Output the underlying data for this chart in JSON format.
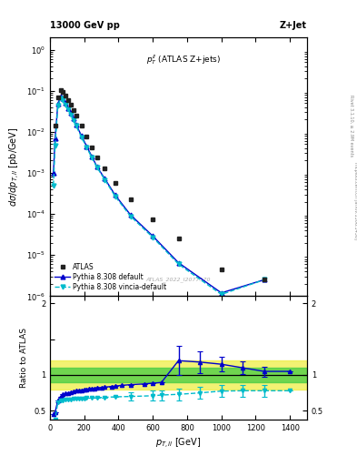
{
  "title_left": "13000 GeV pp",
  "title_right": "Z+Jet",
  "annotation": "$p_T^{ll}$ (ATLAS Z+jets)",
  "watermark": "ATLAS_2022_I2077570",
  "xlabel": "$p_{T,ll}$ [GeV]",
  "ylabel": "$d\\sigma/dp_{T,ll}$ [pb/GeV]",
  "ylabel_ratio": "Ratio to ATLAS",
  "atlas_x": [
    30,
    46,
    61.5,
    76.5,
    92,
    107,
    122,
    137,
    152,
    184,
    214.5,
    244.5,
    275,
    320,
    380,
    470,
    600,
    750,
    1000,
    1250
  ],
  "atlas_y": [
    0.014,
    0.07,
    0.102,
    0.095,
    0.078,
    0.06,
    0.045,
    0.034,
    0.025,
    0.014,
    0.0075,
    0.0042,
    0.0024,
    0.0013,
    0.00058,
    0.00023,
    7.5e-05,
    2.5e-05,
    4.5e-06,
    2.5e-06
  ],
  "pythia_def_x": [
    20,
    30,
    46,
    61.5,
    76.5,
    92,
    107,
    122,
    137,
    152,
    184,
    214.5,
    244.5,
    275,
    320,
    380,
    470,
    600,
    750,
    1000,
    1250
  ],
  "pythia_def_y": [
    0.001,
    0.007,
    0.048,
    0.072,
    0.065,
    0.05,
    0.038,
    0.0285,
    0.021,
    0.015,
    0.008,
    0.0044,
    0.0025,
    0.0014,
    0.00072,
    0.00029,
    9.5e-05,
    2.9e-05,
    6.5e-06,
    1.2e-06,
    2.5e-06
  ],
  "pythia_vincia_x": [
    20,
    30,
    46,
    61.5,
    76.5,
    92,
    107,
    122,
    137,
    152,
    184,
    214.5,
    244.5,
    275,
    320,
    380,
    470,
    600,
    750,
    1000,
    1250
  ],
  "pythia_vincia_y": [
    0.0005,
    0.0045,
    0.043,
    0.065,
    0.059,
    0.0455,
    0.035,
    0.0265,
    0.0195,
    0.014,
    0.0074,
    0.0041,
    0.00235,
    0.00135,
    0.00068,
    0.00027,
    8.8e-05,
    2.7e-05,
    6e-06,
    1.1e-06,
    2.5e-06
  ],
  "ratio_def_x": [
    20,
    30,
    46,
    61.5,
    76.5,
    92,
    107,
    122,
    137,
    152,
    167,
    184,
    199,
    214.5,
    229,
    244.5,
    260,
    275,
    300,
    320,
    360,
    380,
    420,
    470,
    550,
    600,
    650,
    750,
    875,
    1000,
    1125,
    1250,
    1400
  ],
  "ratio_def_y": [
    0.45,
    0.48,
    0.65,
    0.7,
    0.73,
    0.74,
    0.75,
    0.76,
    0.77,
    0.78,
    0.785,
    0.79,
    0.795,
    0.8,
    0.805,
    0.81,
    0.815,
    0.82,
    0.825,
    0.83,
    0.84,
    0.845,
    0.855,
    0.865,
    0.875,
    0.885,
    0.895,
    1.2,
    1.18,
    1.15,
    1.1,
    1.05,
    1.05
  ],
  "ratio_def_yerr": [
    0.0,
    0.0,
    0.0,
    0.0,
    0.0,
    0.0,
    0.0,
    0.0,
    0.0,
    0.0,
    0.0,
    0.0,
    0.0,
    0.0,
    0.0,
    0.0,
    0.0,
    0.0,
    0.0,
    0.0,
    0.0,
    0.0,
    0.0,
    0.0,
    0.0,
    0.0,
    0.0,
    0.2,
    0.15,
    0.1,
    0.09,
    0.07,
    0.0
  ],
  "ratio_vincia_x": [
    20,
    30,
    46,
    61.5,
    76.5,
    92,
    107,
    122,
    137,
    152,
    167,
    184,
    199,
    214.5,
    244.5,
    275,
    320,
    380,
    470,
    600,
    650,
    750,
    875,
    1000,
    1125,
    1250,
    1400
  ],
  "ratio_vincia_y": [
    0.35,
    0.38,
    0.62,
    0.645,
    0.65,
    0.655,
    0.66,
    0.663,
    0.666,
    0.668,
    0.67,
    0.672,
    0.674,
    0.676,
    0.68,
    0.684,
    0.688,
    0.695,
    0.7,
    0.71,
    0.72,
    0.73,
    0.75,
    0.775,
    0.78,
    0.78,
    0.78
  ],
  "ratio_vincia_yerr": [
    0.0,
    0.0,
    0.0,
    0.0,
    0.0,
    0.0,
    0.0,
    0.0,
    0.0,
    0.0,
    0.0,
    0.0,
    0.0,
    0.0,
    0.0,
    0.0,
    0.0,
    0.0,
    0.06,
    0.07,
    0.07,
    0.08,
    0.08,
    0.08,
    0.08,
    0.08,
    0.0
  ],
  "green_band": [
    0.9,
    1.1
  ],
  "yellow_band": [
    0.8,
    1.2
  ],
  "ylim_main": [
    1e-06,
    2.0
  ],
  "ylim_ratio": [
    0.38,
    2.1
  ],
  "xlim": [
    0,
    1500
  ],
  "color_atlas": "#222222",
  "color_pydef": "#0000cc",
  "color_pyvin": "#00bbcc",
  "legend_labels": [
    "ATLAS",
    "Pythia 8.308 default",
    "Pythia 8.308 vincia-default"
  ]
}
